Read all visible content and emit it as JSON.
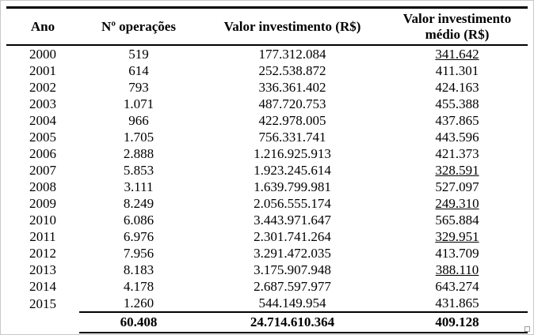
{
  "table": {
    "headers": [
      "Ano",
      "Nº operações",
      "Valor investimento (R$)",
      "Valor investimento médio (R$)"
    ],
    "rows": [
      {
        "ano": "2000",
        "ops": "519",
        "valor": "177.312.084",
        "medio": "341.642",
        "underline": true
      },
      {
        "ano": "2001",
        "ops": "614",
        "valor": "252.538.872",
        "medio": "411.301",
        "underline": false
      },
      {
        "ano": "2002",
        "ops": "793",
        "valor": "336.361.402",
        "medio": "424.163",
        "underline": false
      },
      {
        "ano": "2003",
        "ops": "1.071",
        "valor": "487.720.753",
        "medio": "455.388",
        "underline": false
      },
      {
        "ano": "2004",
        "ops": "966",
        "valor": "422.978.005",
        "medio": "437.865",
        "underline": false
      },
      {
        "ano": "2005",
        "ops": "1.705",
        "valor": "756.331.741",
        "medio": "443.596",
        "underline": false
      },
      {
        "ano": "2006",
        "ops": "2.888",
        "valor": "1.216.925.913",
        "medio": "421.373",
        "underline": false
      },
      {
        "ano": "2007",
        "ops": "5.853",
        "valor": "1.923.245.614",
        "medio": "328.591",
        "underline": true
      },
      {
        "ano": "2008",
        "ops": "3.111",
        "valor": "1.639.799.981",
        "medio": "527.097",
        "underline": false
      },
      {
        "ano": "2009",
        "ops": "8.249",
        "valor": "2.056.555.174",
        "medio": "249.310",
        "underline": true
      },
      {
        "ano": "2010",
        "ops": "6.086",
        "valor": "3.443.971.647",
        "medio": "565.884",
        "underline": false
      },
      {
        "ano": "2011",
        "ops": "6.976",
        "valor": "2.301.741.264",
        "medio": "329.951",
        "underline": true
      },
      {
        "ano": "2012",
        "ops": "7.956",
        "valor": "3.291.472.035",
        "medio": "413.709",
        "underline": false
      },
      {
        "ano": "2013",
        "ops": "8.183",
        "valor": "3.175.907.948",
        "medio": "388.110",
        "underline": true
      },
      {
        "ano": "2014",
        "ops": "4.178",
        "valor": "2.687.597.977",
        "medio": "643.274",
        "underline": false
      },
      {
        "ano": "2015",
        "ops": "1.260",
        "valor": "544.149.954",
        "medio": "431.865",
        "underline": false
      }
    ],
    "total": {
      "ano": "",
      "ops": "60.408",
      "valor": "24.714.610.364",
      "medio": "409.128"
    }
  }
}
